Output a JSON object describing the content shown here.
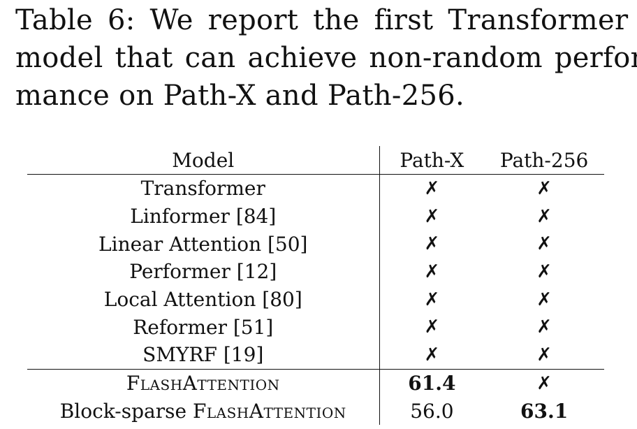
{
  "caption": {
    "lines": [
      "Table 6: We report the first Transformer",
      "model that can achieve non-random perfor-",
      "mance on Path-X and Path-256."
    ]
  },
  "table": {
    "headers": [
      "Model",
      "Path-X",
      "Path-256"
    ],
    "rows": [
      {
        "model": "Transformer",
        "path_x": "✗",
        "path_256": "✗"
      },
      {
        "model": "Linformer [84]",
        "path_x": "✗",
        "path_256": "✗"
      },
      {
        "model": "Linear Attention [50]",
        "path_x": "✗",
        "path_256": "✗"
      },
      {
        "model": "Performer [12]",
        "path_x": "✗",
        "path_256": "✗"
      },
      {
        "model": "Local Attention [80]",
        "path_x": "✗",
        "path_256": "✗"
      },
      {
        "model": "Reformer [51]",
        "path_x": "✗",
        "path_256": "✗"
      },
      {
        "model": "SMYRF [19]",
        "path_x": "✗",
        "path_256": "✗"
      },
      {
        "model": "FlashAttention",
        "path_x": "61.4",
        "path_256": "✗"
      },
      {
        "model": "Block-sparse FlashAttention",
        "path_x": "56.0",
        "path_256": "63.1"
      }
    ]
  }
}
